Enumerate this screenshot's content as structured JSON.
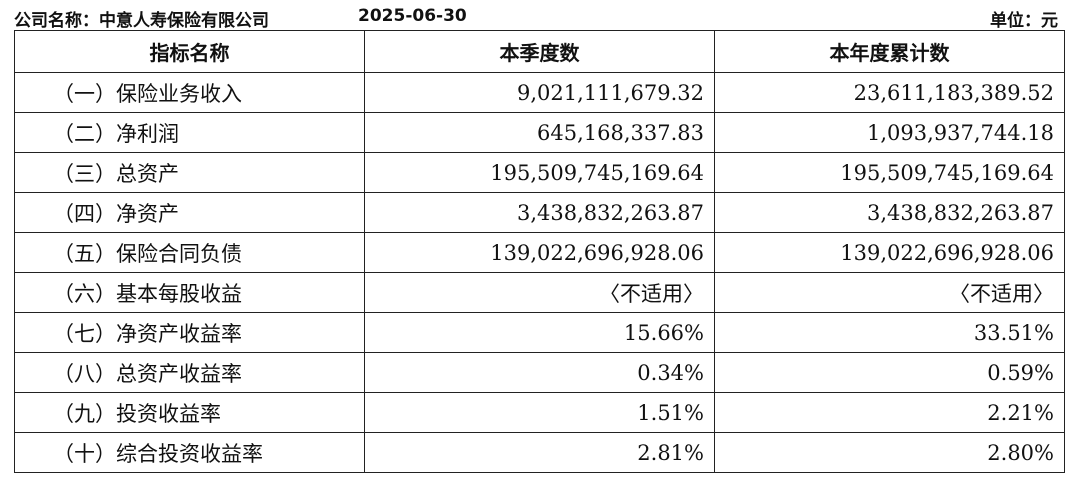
{
  "header": {
    "company": "公司名称：中意人寿保险有限公司",
    "date": "2025-06-30",
    "unit": "单位：元"
  },
  "table": {
    "columns": [
      "指标名称",
      "本季度数",
      "本年度累计数"
    ],
    "rows": [
      {
        "name": "（一）保险业务收入",
        "quarter": "9,021,111,679.32",
        "ytd": "23,611,183,389.52"
      },
      {
        "name": "（二）净利润",
        "quarter": "645,168,337.83",
        "ytd": "1,093,937,744.18"
      },
      {
        "name": "（三）总资产",
        "quarter": "195,509,745,169.64",
        "ytd": "195,509,745,169.64"
      },
      {
        "name": "（四）净资产",
        "quarter": "3,438,832,263.87",
        "ytd": "3,438,832,263.87"
      },
      {
        "name": "（五）保险合同负债",
        "quarter": "139,022,696,928.06",
        "ytd": "139,022,696,928.06"
      },
      {
        "name": "（六）基本每股收益",
        "quarter": "〈不适用〉",
        "ytd": "〈不适用〉"
      },
      {
        "name": "（七）净资产收益率",
        "quarter": "15.66%",
        "ytd": "33.51%"
      },
      {
        "name": "（八）总资产收益率",
        "quarter": "0.34%",
        "ytd": "0.59%"
      },
      {
        "name": "（九）投资收益率",
        "quarter": "1.51%",
        "ytd": "2.21%"
      },
      {
        "name": "（十）综合投资收益率",
        "quarter": "2.81%",
        "ytd": "2.80%"
      }
    ]
  }
}
